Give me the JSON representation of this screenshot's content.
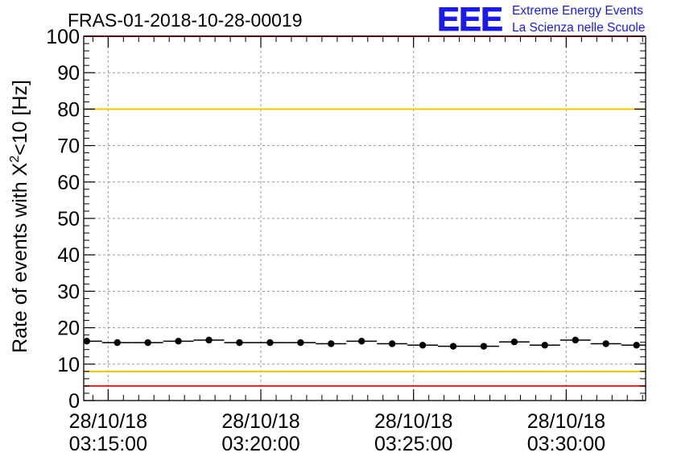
{
  "chart_data": {
    "type": "scatter",
    "title": "FRAS-01-2018-10-28-00019",
    "ylabel_prefix": "Rate of events with X",
    "ylabel_sup": "2",
    "ylabel_suffix": "<10 [Hz]",
    "xlabel": "",
    "ylim": [
      0,
      100
    ],
    "y_ticks": [
      "0",
      "10",
      "20",
      "30",
      "40",
      "50",
      "60",
      "70",
      "80",
      "90",
      "100"
    ],
    "x_range_seconds": [
      -48,
      1056
    ],
    "x_ticks": [
      {
        "t": 0,
        "date": "28/10/18",
        "time": "03:15:00"
      },
      {
        "t": 300,
        "date": "28/10/18",
        "time": "03:20:00"
      },
      {
        "t": 600,
        "date": "28/10/18",
        "time": "03:25:00"
      },
      {
        "t": 900,
        "date": "28/10/18",
        "time": "03:30:00"
      }
    ],
    "grid": true,
    "bin_width_seconds": 60,
    "series": [
      {
        "name": "rate",
        "x_seconds": [
          -42,
          18,
          78,
          138,
          198,
          258,
          318,
          378,
          438,
          498,
          558,
          618,
          678,
          738,
          798,
          858,
          918,
          978,
          1038
        ],
        "values": [
          16.3,
          15.9,
          15.9,
          16.3,
          16.6,
          15.9,
          15.9,
          15.9,
          15.6,
          16.3,
          15.6,
          15.2,
          14.9,
          14.9,
          16.1,
          15.2,
          16.6,
          15.6,
          15.2
        ]
      }
    ],
    "reference_lines": [
      {
        "y": 80,
        "color": "#f2c800"
      },
      {
        "y": 8,
        "color": "#f2c800"
      },
      {
        "y": 100,
        "color": "#ee1c1c"
      },
      {
        "y": 4,
        "color": "#ee1c1c"
      }
    ]
  },
  "logo": {
    "mark": "EEE",
    "line1": "Extreme Energy Events",
    "line2": "La Scienza nelle Scuole",
    "color": "#1a1aee"
  }
}
